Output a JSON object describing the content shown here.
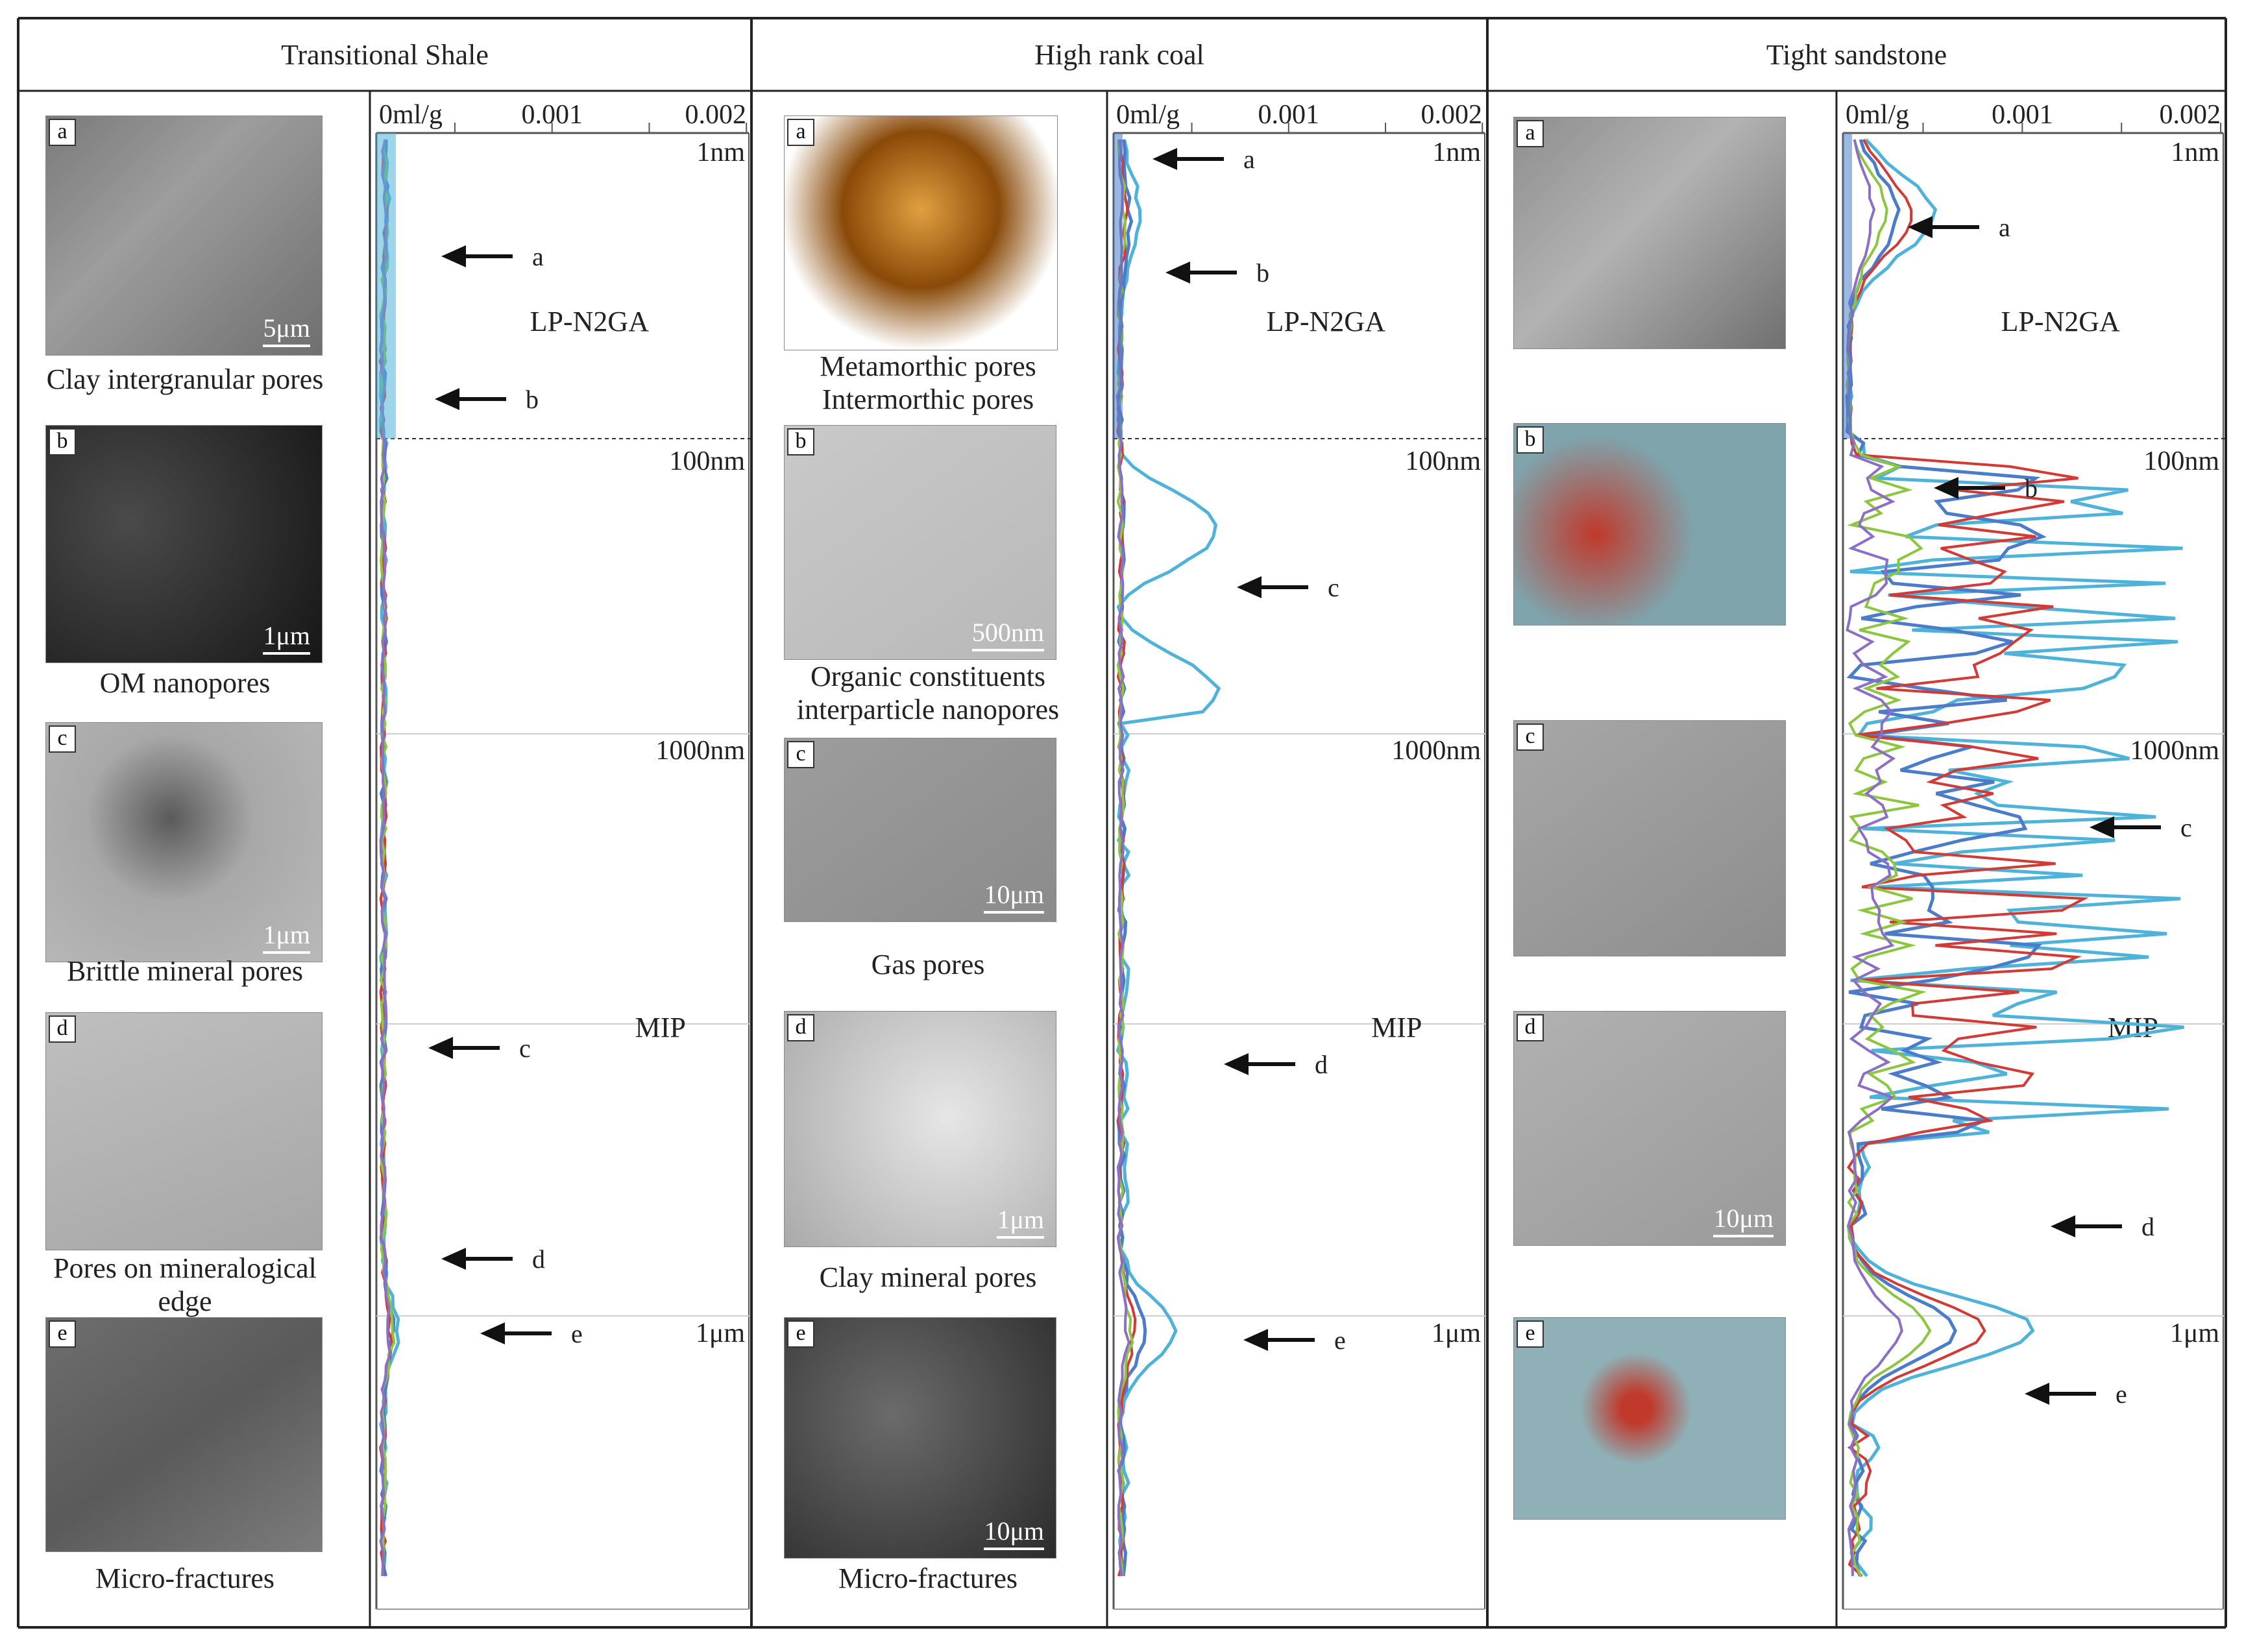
{
  "columns": [
    {
      "header": "Transitional Shale",
      "panels": [
        {
          "badge": "a",
          "caption": "Clay intergranular pores",
          "scale": "5μm"
        },
        {
          "badge": "b",
          "caption": "OM nanopores",
          "scale": "1μm"
        },
        {
          "badge": "c",
          "caption": "Brittle mineral pores",
          "scale": "1μm"
        },
        {
          "badge": "d",
          "caption": "Pores on mineralogical edge",
          "scale": ""
        },
        {
          "badge": "e",
          "caption": "Micro-fractures",
          "scale": ""
        }
      ]
    },
    {
      "header": "High rank coal",
      "panels": [
        {
          "badge": "a",
          "caption": "Metamorthic pores Intermorthic pores",
          "scale": ""
        },
        {
          "badge": "b",
          "caption": "Organic constituents interparticle nanopores",
          "scale": "500nm"
        },
        {
          "badge": "c",
          "caption": "Gas pores",
          "scale": "10μm"
        },
        {
          "badge": "d",
          "caption": "Clay mineral pores",
          "scale": "1μm"
        },
        {
          "badge": "e",
          "caption": "Micro-fractures",
          "scale": "10μm"
        }
      ]
    },
    {
      "header": "Tight sandstone",
      "panels": [
        {
          "badge": "a",
          "caption": "",
          "scale": ""
        },
        {
          "badge": "b",
          "caption": "",
          "scale": ""
        },
        {
          "badge": "c",
          "caption": "",
          "scale": ""
        },
        {
          "badge": "d",
          "caption": "",
          "scale": "10μm"
        },
        {
          "badge": "e",
          "caption": "",
          "scale": ""
        }
      ]
    }
  ],
  "plot_text": {
    "x_ticks": [
      "0ml/g",
      "0.001",
      "0.002"
    ],
    "depth_labels": [
      "1nm",
      "100nm",
      "1000nm",
      "1μm"
    ],
    "method_top": "LP-N2GA",
    "method_bottom": "MIP",
    "arrow_letters": [
      "a",
      "b",
      "c",
      "d",
      "e"
    ]
  },
  "colors": {
    "series_blue": "#4a7cc9",
    "series_cyan": "#4fb3d9",
    "series_red": "#d23a36",
    "series_green": "#8cc63f",
    "series_purple": "#8b6fc7",
    "grid": "#cfcfcf",
    "frame": "#222222"
  },
  "chart_data": {
    "type": "line",
    "x_ticks": [
      "0ml/g",
      "0.001",
      "0.002"
    ],
    "y_ticks": [
      "1nm",
      "100nm",
      "1000nm",
      "1μm"
    ],
    "annotations": [
      "LP-N2GA",
      "MIP"
    ]
  }
}
